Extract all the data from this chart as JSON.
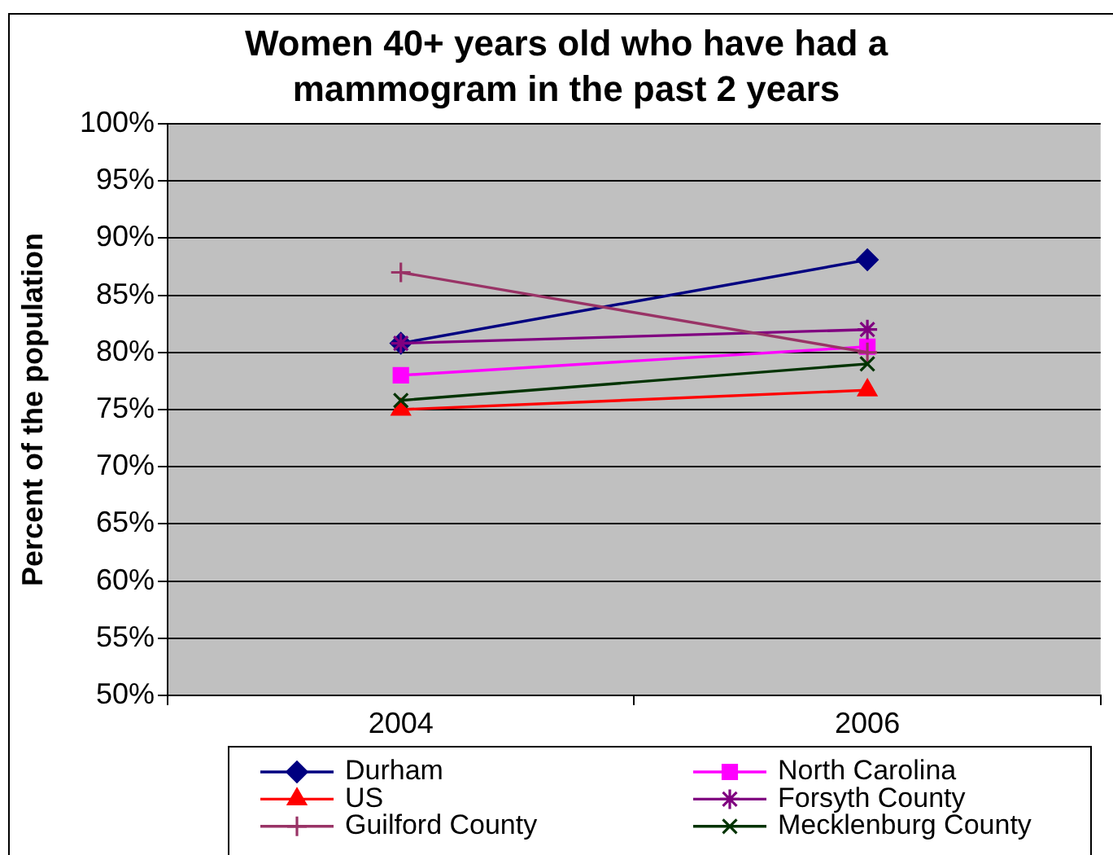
{
  "chart_data": {
    "type": "line",
    "title": "Women 40+ years old who have had a mammogram in the past 2 years",
    "ylabel": "Percent of the population",
    "categories": [
      "2004",
      "2006"
    ],
    "series": [
      {
        "name": "Durham",
        "color": "#000080",
        "marker": "diamond",
        "values": [
          80.8,
          88.1
        ]
      },
      {
        "name": "North Carolina",
        "color": "#ff00ff",
        "marker": "square",
        "values": [
          78.0,
          80.5
        ]
      },
      {
        "name": "US",
        "color": "#ff0000",
        "marker": "triangle",
        "values": [
          75.0,
          76.7
        ]
      },
      {
        "name": "Forsyth County",
        "color": "#800080",
        "marker": "cross",
        "values": [
          80.8,
          82.0
        ]
      },
      {
        "name": "Guilford County",
        "color": "#993366",
        "marker": "plus",
        "values": [
          87.0,
          80.0
        ]
      },
      {
        "name": "Mecklenburg County",
        "color": "#003300",
        "marker": "x",
        "values": [
          75.8,
          79.0
        ]
      }
    ],
    "ylim": [
      50,
      100
    ],
    "yticks": [
      {
        "value": 50,
        "label": "50%"
      },
      {
        "value": 55,
        "label": "55%"
      },
      {
        "value": 60,
        "label": "60%"
      },
      {
        "value": 65,
        "label": "65%"
      },
      {
        "value": 70,
        "label": "70%"
      },
      {
        "value": 75,
        "label": "75%"
      },
      {
        "value": 80,
        "label": "80%"
      },
      {
        "value": 85,
        "label": "85%"
      },
      {
        "value": 90,
        "label": "90%"
      },
      {
        "value": 95,
        "label": "95%"
      },
      {
        "value": 100,
        "label": "100%"
      }
    ],
    "grid": "y",
    "legend": "bottom",
    "line_style": "solid"
  }
}
